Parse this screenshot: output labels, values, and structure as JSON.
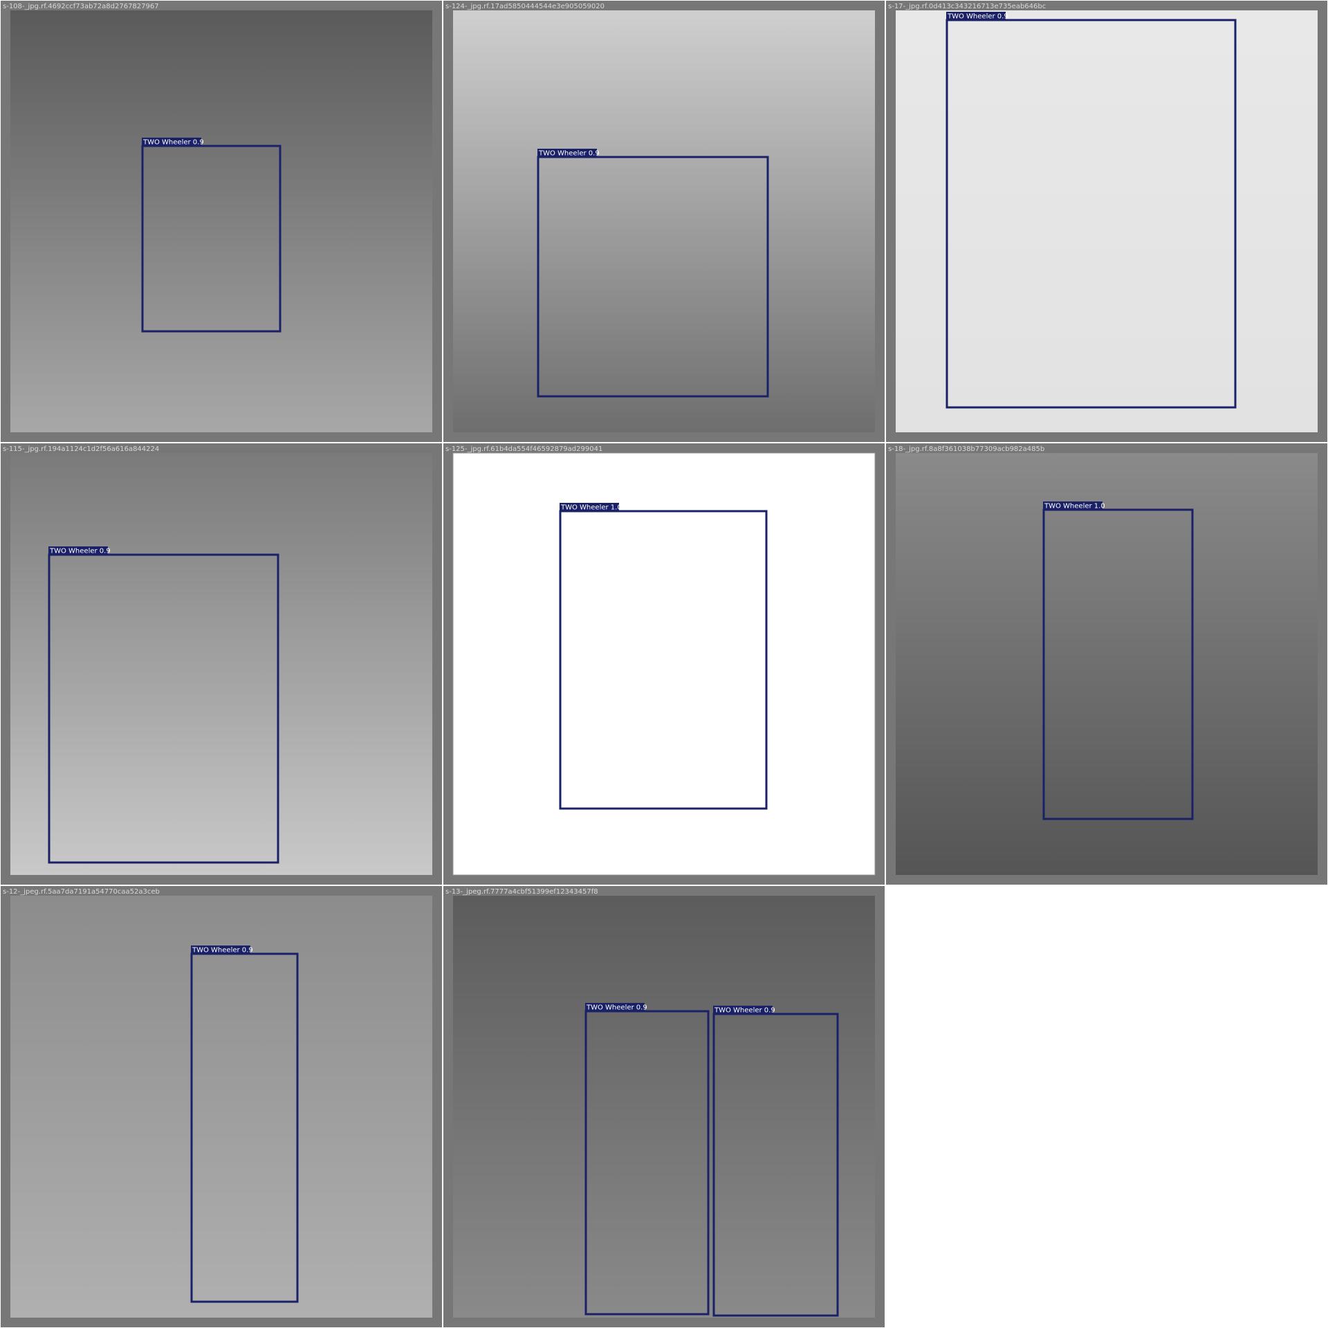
{
  "tiles": [
    {
      "filename": "s-108-_jpg.rf.4692ccf73ab72a8d2767827967",
      "detections": [
        {
          "label": "TWO Wheeler 0.9"
        }
      ]
    },
    {
      "filename": "s-124-_jpg.rf.17ad5850444544e3e905059020",
      "detections": [
        {
          "label": "TWO Wheeler 0.9"
        }
      ]
    },
    {
      "filename": "s-17-_jpg.rf.0d413c343216713e735eab646bc",
      "detections": [
        {
          "label": "TWO Wheeler 0.9"
        }
      ]
    },
    {
      "filename": "s-115-_jpg.rf.194a1124c1d2f56a616a844224",
      "detections": [
        {
          "label": "TWO Wheeler 0.9"
        }
      ]
    },
    {
      "filename": "s-125-_jpg.rf.61b4da554f46592879ad299041",
      "detections": [
        {
          "label": "TWO Wheeler 1.0"
        }
      ]
    },
    {
      "filename": "s-18-_jpg.rf.8a8f361038b77309acb982a485b",
      "detections": [
        {
          "label": "TWO Wheeler 1.0"
        }
      ]
    },
    {
      "filename": "s-12-_jpeg.rf.5aa7da7191a54770caa52a3ceb",
      "detections": [
        {
          "label": "TWO Wheeler 0.9"
        }
      ]
    },
    {
      "filename": "s-13-_jpeg.rf.7777a4cbf51399ef12343457f8",
      "detections": [
        {
          "label": "TWO Wheeler 0.9"
        },
        {
          "label": "TWO Wheeler 0.9"
        }
      ]
    }
  ]
}
